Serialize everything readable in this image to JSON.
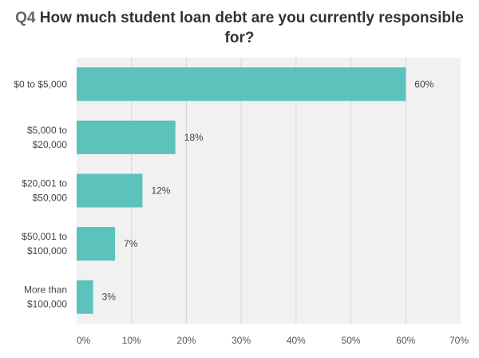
{
  "chart_data": {
    "type": "bar",
    "orientation": "horizontal",
    "title_prefix": "Q4",
    "title": "How much student loan debt are you currently responsible for?",
    "categories": [
      "$0 to $5,000",
      "$5,000 to $20,000",
      "$20,001 to $50,000",
      "$50,001 to $100,000",
      "More than $100,000"
    ],
    "category_lines": [
      [
        "$0 to $5,000"
      ],
      [
        "$5,000 to",
        "$20,000"
      ],
      [
        "$20,001 to",
        "$50,000"
      ],
      [
        "$50,001 to",
        "$100,000"
      ],
      [
        "More than",
        "$100,000"
      ]
    ],
    "values": [
      60,
      18,
      12,
      7,
      3
    ],
    "data_labels": [
      "60%",
      "18%",
      "12%",
      "7%",
      "3%"
    ],
    "xlim": [
      0,
      70
    ],
    "xticks": [
      "0%",
      "10%",
      "20%",
      "30%",
      "40%",
      "50%",
      "60%",
      "70%"
    ],
    "grid": true,
    "bar_color": "#5bc2bc",
    "plot_background": "#f1f1f1"
  }
}
